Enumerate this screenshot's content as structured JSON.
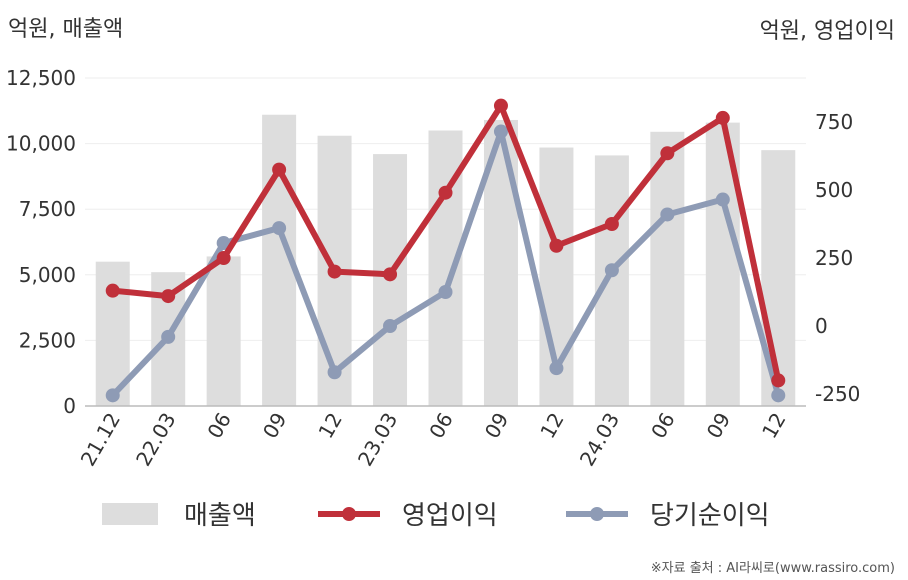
{
  "chart_data": {
    "type": "bar+line",
    "categories": [
      "21.12",
      "22.03",
      "06",
      "09",
      "12",
      "23.03",
      "06",
      "09",
      "12",
      "24.03",
      "06",
      "09",
      "12"
    ],
    "left_axis": {
      "label": "억원, 매출액",
      "ylim": [
        0,
        12500
      ],
      "ticks": [
        0,
        2500,
        5000,
        7500,
        10000,
        12500
      ],
      "tick_labels": [
        "0",
        "2,500",
        "5,000",
        "7,500",
        "10,000",
        "12,500"
      ]
    },
    "right_axis": {
      "label": "억원, 영업이익",
      "ylim": [
        -300,
        1000
      ],
      "ticks": [
        -250,
        0,
        250,
        500,
        750
      ],
      "tick_labels": [
        "-250",
        "0",
        "250",
        "500",
        "750"
      ]
    },
    "series": [
      {
        "name": "매출액",
        "kind": "bar",
        "axis": "left",
        "color": "#dddddd",
        "values": [
          5500,
          5100,
          5700,
          11100,
          10300,
          9600,
          10500,
          10900,
          9850,
          9550,
          10450,
          10800,
          9750
        ]
      },
      {
        "name": "영업이익",
        "kind": "line",
        "axis": "right",
        "color": "#c0303a",
        "values": [
          130,
          110,
          250,
          575,
          200,
          190,
          490,
          810,
          295,
          375,
          635,
          765,
          -200
        ]
      },
      {
        "name": "당기순이익",
        "kind": "line",
        "axis": "right",
        "color": "#8e9bb5",
        "values": [
          -255,
          -40,
          305,
          360,
          -170,
          0,
          125,
          715,
          -155,
          205,
          410,
          465,
          -255
        ]
      }
    ],
    "grid": true,
    "legend_position": "bottom"
  },
  "source": "※자료 출처 : AI라씨로(www.rassiro.com)"
}
